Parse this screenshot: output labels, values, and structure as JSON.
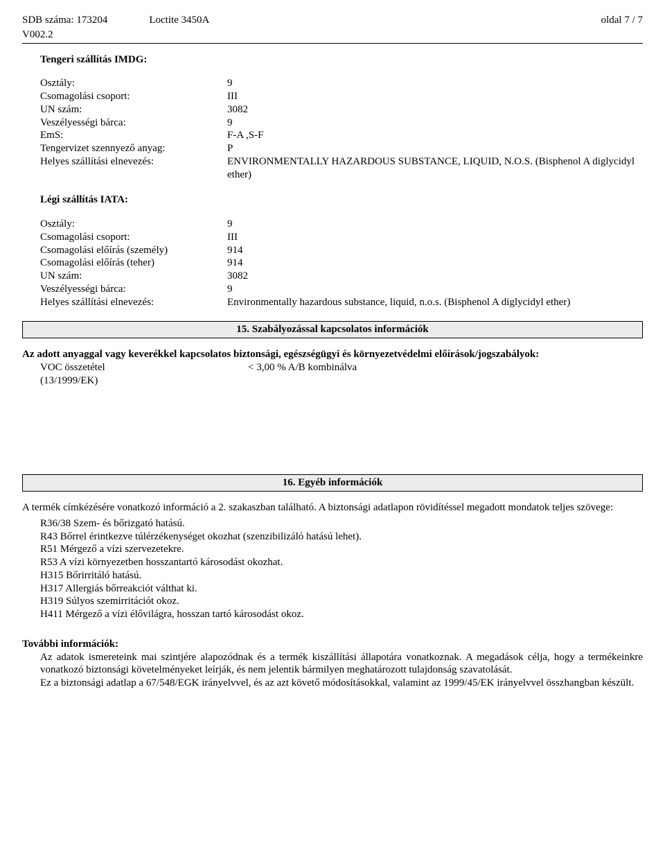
{
  "header": {
    "sdb": "SDB száma: 173204",
    "product": "Loctite 3450A",
    "page": "oldal 7 / 7",
    "version": "V002.2"
  },
  "imdg": {
    "title": "Tengeri szállítás IMDG:",
    "rows": [
      [
        "Osztály:",
        "9"
      ],
      [
        "Csomagolási csoport:",
        "III"
      ],
      [
        "UN szám:",
        "3082"
      ],
      [
        "Veszélyességi bárca:",
        "9"
      ],
      [
        "EmS:",
        "F-A ,S-F"
      ],
      [
        "Tengervizet szennyező anyag:",
        "P"
      ],
      [
        "Helyes szállítási elnevezés:",
        "ENVIRONMENTALLY HAZARDOUS SUBSTANCE, LIQUID, N.O.S. (Bisphenol A diglycidyl ether)"
      ]
    ]
  },
  "iata": {
    "title": "Légi szállítás IATA:",
    "rows": [
      [
        "Osztály:",
        "9"
      ],
      [
        "Csomagolási csoport:",
        "III"
      ],
      [
        "Csomagolási előírás (személy)",
        "914"
      ],
      [
        "Csomagolási előírás (teher)",
        "914"
      ],
      [
        "UN szám:",
        "3082"
      ],
      [
        "Veszélyességi bárca:",
        "9"
      ],
      [
        "Helyes szállítási elnevezés:",
        "Environmentally hazardous substance, liquid, n.o.s. (Bisphenol A diglycidyl ether)"
      ]
    ]
  },
  "section15": {
    "title": "15. Szabályozással kapcsolatos információk",
    "intro": "Az adott anyaggal vagy keverékkel kapcsolatos biztonsági, egészségügyi és környezetvédelmi előírások/jogszabályok:",
    "voc_label": "VOC összetétel",
    "voc_sub": "(13/1999/EK)",
    "voc_value": "< 3,00 % A/B kombinálva"
  },
  "section16": {
    "title": "16. Egyéb információk",
    "intro1": "A termék címkézésére vonatkozó információ a 2. szakaszban található. A biztonsági adatlapon rövidítéssel megadott mondatok teljes szövege:",
    "r36": "R36/38 Szem- és bőrizgató hatású.",
    "r43": "R43 Bőrrel érintkezve túlérzékenységet okozhat (szenzibilizáló hatású lehet).",
    "r51": "R51 Mérgező a vízi szervezetekre.",
    "r53": "R53 A vízi környezetben hosszantartó károsodást okozhat.",
    "h315": "H315 Bőrirritáló hatású.",
    "h317": "H317 Allergiás bőrreakciót válthat ki.",
    "h319": "H319 Súlyos szemirritációt okoz.",
    "h411": "H411 Mérgező a vízi élővilágra, hosszan tartó károsodást okoz.",
    "further_title": "További információk:",
    "further1": "Az adatok ismereteink mai szintjére alapozódnak és a termék kiszállítási állapotára vonatkoznak. A megadások célja, hogy a termékeinkre vonatkozó biztonsági követelményeket leírják, és nem jelentik bármilyen meghatározott tulajdonság szavatolását.",
    "further2": "Ez a biztonsági adatlap a 67/548/EGK irányelvvel, és az azt követő módosításokkal, valamint az 1999/45/EK irányelvvel összhangban készült."
  }
}
